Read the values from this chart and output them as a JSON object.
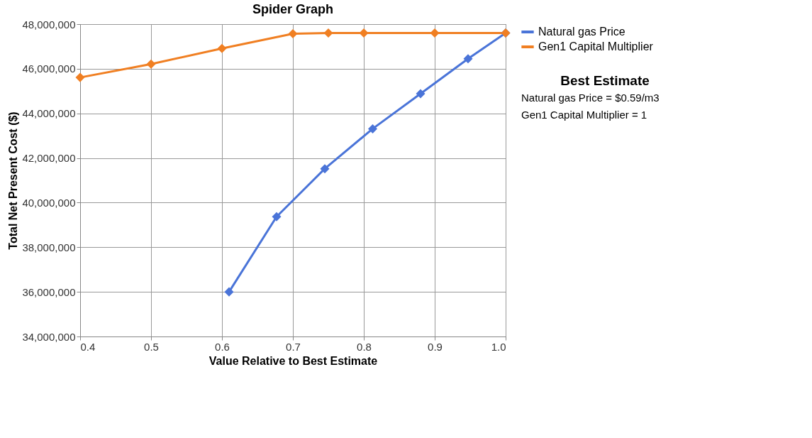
{
  "chart_data": {
    "type": "line",
    "title": "Spider Graph",
    "xlabel": "Value Relative to Best Estimate",
    "ylabel": "Total Net Present Cost ($)",
    "xlim": [
      0.4,
      1.0
    ],
    "xticks": [
      0.4,
      0.5,
      0.6,
      0.7,
      0.8,
      0.9,
      {
        "value": 1.0,
        "label": "1.0"
      }
    ],
    "ylim": [
      34000000,
      48000000
    ],
    "yticks": [
      {
        "value": 34000000,
        "label": "34,000,000"
      },
      {
        "value": 36000000,
        "label": "36,000,000"
      },
      {
        "value": 38000000,
        "label": "38,000,000"
      },
      {
        "value": 40000000,
        "label": "40,000,000"
      },
      {
        "value": 42000000,
        "label": "42,000,000"
      },
      {
        "value": 44000000,
        "label": "44,000,000"
      },
      {
        "value": 46000000,
        "label": "46,000,000"
      },
      {
        "value": 48000000,
        "label": "48,000,000"
      }
    ],
    "grid": true,
    "legend": "top right",
    "marker": "diamond",
    "line_style": "solid",
    "series": [
      {
        "name": "Natural gas Price",
        "color": "#4a74d8",
        "x": [
          0.61,
          0.677,
          0.745,
          0.8125,
          0.88,
          0.947,
          1.0
        ],
        "values": [
          36000000,
          39370000,
          41520000,
          43310000,
          44880000,
          46450000,
          47600000
        ]
      },
      {
        "name": "Gen1 Capital Multiplier",
        "color": "#f07f22",
        "x": [
          0.4,
          0.5,
          0.6,
          0.7,
          0.75,
          0.8,
          0.9,
          1.0
        ],
        "values": [
          45610000,
          46210000,
          46910000,
          47570000,
          47600000,
          47600000,
          47600000,
          47600000
        ]
      }
    ],
    "annotations": [
      "Best Estimate",
      "Natural gas Price = $0.59/m3",
      "Gen1 Capital Multiplier = 1"
    ]
  }
}
